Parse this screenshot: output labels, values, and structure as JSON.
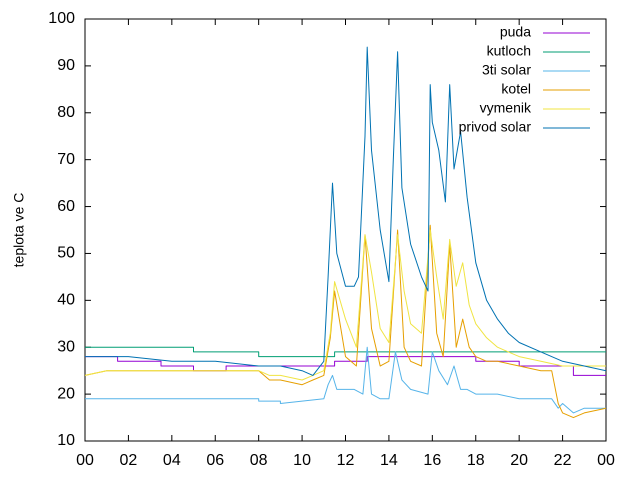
{
  "chart_data": {
    "type": "line",
    "title": "",
    "xlabel": "",
    "ylabel": "teplota ve C",
    "xlim": [
      0,
      24
    ],
    "ylim": [
      10,
      100
    ],
    "x_ticks": [
      "00",
      "02",
      "04",
      "06",
      "08",
      "10",
      "12",
      "14",
      "16",
      "18",
      "20",
      "22",
      "00"
    ],
    "y_ticks": [
      10,
      20,
      30,
      40,
      50,
      60,
      70,
      80,
      90,
      100
    ],
    "grid": false,
    "legend_position": "top-right",
    "series": [
      {
        "name": "puda",
        "color": "#9400d3",
        "x": [
          0,
          1.5,
          1.5,
          2.5,
          2.5,
          3.5,
          3.5,
          5,
          5,
          6.5,
          6.5,
          8,
          8,
          11.5,
          11.5,
          13,
          13,
          14.5,
          14.5,
          18,
          18,
          20,
          20,
          22.5,
          22.5,
          24
        ],
        "y": [
          28,
          28,
          27,
          27,
          27,
          27,
          26,
          26,
          25,
          25,
          26,
          26,
          26,
          26,
          27,
          27,
          28,
          28,
          28,
          28,
          27,
          27,
          26,
          26,
          24,
          24
        ]
      },
      {
        "name": "kutloch",
        "color": "#009e73",
        "x": [
          0,
          5,
          5,
          8,
          8,
          11.5,
          11.5,
          20,
          20,
          24
        ],
        "y": [
          30,
          30,
          29,
          29,
          28,
          28,
          29,
          29,
          29,
          29
        ]
      },
      {
        "name": "3ti solar",
        "color": "#56b4e9",
        "x": [
          0,
          5,
          5,
          8,
          8,
          9,
          9,
          11,
          11.2,
          11.4,
          11.6,
          12,
          12.4,
          12.8,
          13,
          13.2,
          13.6,
          14,
          14.3,
          14.6,
          15,
          15.8,
          16,
          16.3,
          16.7,
          17,
          17.3,
          17.6,
          18,
          19,
          20,
          21,
          21.5,
          21.8,
          22,
          22.5,
          23,
          24
        ],
        "y": [
          19,
          19,
          19,
          19,
          18.5,
          18.5,
          18,
          19,
          22,
          24,
          21,
          21,
          21,
          20,
          30,
          20,
          19,
          19,
          29,
          23,
          21,
          20,
          29,
          25,
          22,
          26,
          21,
          21,
          20,
          20,
          19,
          19,
          19,
          17,
          18,
          16,
          17,
          17
        ]
      },
      {
        "name": "kotel",
        "color": "#e69f00",
        "x": [
          0,
          1,
          2,
          4,
          6,
          7,
          8,
          8.5,
          9,
          10,
          10.5,
          11,
          11.3,
          11.5,
          12,
          12.5,
          12.9,
          13.2,
          13.6,
          14,
          14.4,
          14.7,
          15,
          15.5,
          15.9,
          16.2,
          16.5,
          16.8,
          17.1,
          17.4,
          17.7,
          18,
          18.5,
          19,
          20,
          21,
          21.5,
          21.8,
          22,
          22.5,
          23,
          24
        ],
        "y": [
          24,
          25,
          25,
          25,
          25,
          25,
          25,
          23,
          23,
          22,
          23,
          24,
          32,
          42,
          28,
          26,
          54,
          34,
          26,
          27,
          55,
          30,
          27,
          26,
          56,
          33,
          28,
          52,
          30,
          36,
          30,
          28,
          27,
          27,
          26,
          25,
          25,
          18,
          16,
          15,
          16,
          17
        ]
      },
      {
        "name": "vymenik",
        "color": "#f0e442",
        "x": [
          0,
          1,
          2,
          4,
          6,
          7,
          8,
          8.5,
          9,
          10,
          10.5,
          11,
          11.3,
          11.5,
          12,
          12.5,
          12.9,
          13.2,
          13.6,
          14,
          14.4,
          14.7,
          15,
          15.5,
          15.9,
          16.2,
          16.5,
          16.8,
          17.1,
          17.4,
          17.7,
          18,
          18.5,
          19,
          19.5,
          20,
          21,
          22,
          23,
          24
        ],
        "y": [
          24,
          25,
          25,
          25,
          25,
          25,
          25,
          24,
          24,
          23,
          24,
          25,
          33,
          44,
          36,
          30,
          54,
          46,
          34,
          31,
          54,
          42,
          35,
          33,
          55,
          45,
          36,
          53,
          43,
          48,
          39,
          35,
          32,
          30,
          29,
          28,
          27,
          26,
          26,
          26
        ]
      },
      {
        "name": "privod solar",
        "color": "#0072b2",
        "x": [
          0,
          2,
          4,
          6,
          8,
          9,
          10,
          10.5,
          11,
          11.2,
          11.4,
          11.6,
          12,
          12.4,
          12.6,
          12.9,
          13,
          13.2,
          13.6,
          14,
          14.2,
          14.4,
          14.6,
          15,
          15.5,
          15.8,
          15.9,
          16,
          16.3,
          16.6,
          16.8,
          17,
          17.3,
          17.6,
          18,
          18.5,
          19,
          19.5,
          20,
          21,
          22,
          23,
          24
        ],
        "y": [
          28,
          28,
          27,
          27,
          26,
          26,
          25,
          24,
          27,
          45,
          65,
          50,
          43,
          43,
          45,
          75,
          94,
          72,
          55,
          44,
          70,
          93,
          64,
          52,
          45,
          42,
          86,
          78,
          72,
          61,
          86,
          68,
          76,
          62,
          48,
          40,
          36,
          33,
          31,
          29,
          27,
          26,
          25
        ]
      }
    ]
  }
}
